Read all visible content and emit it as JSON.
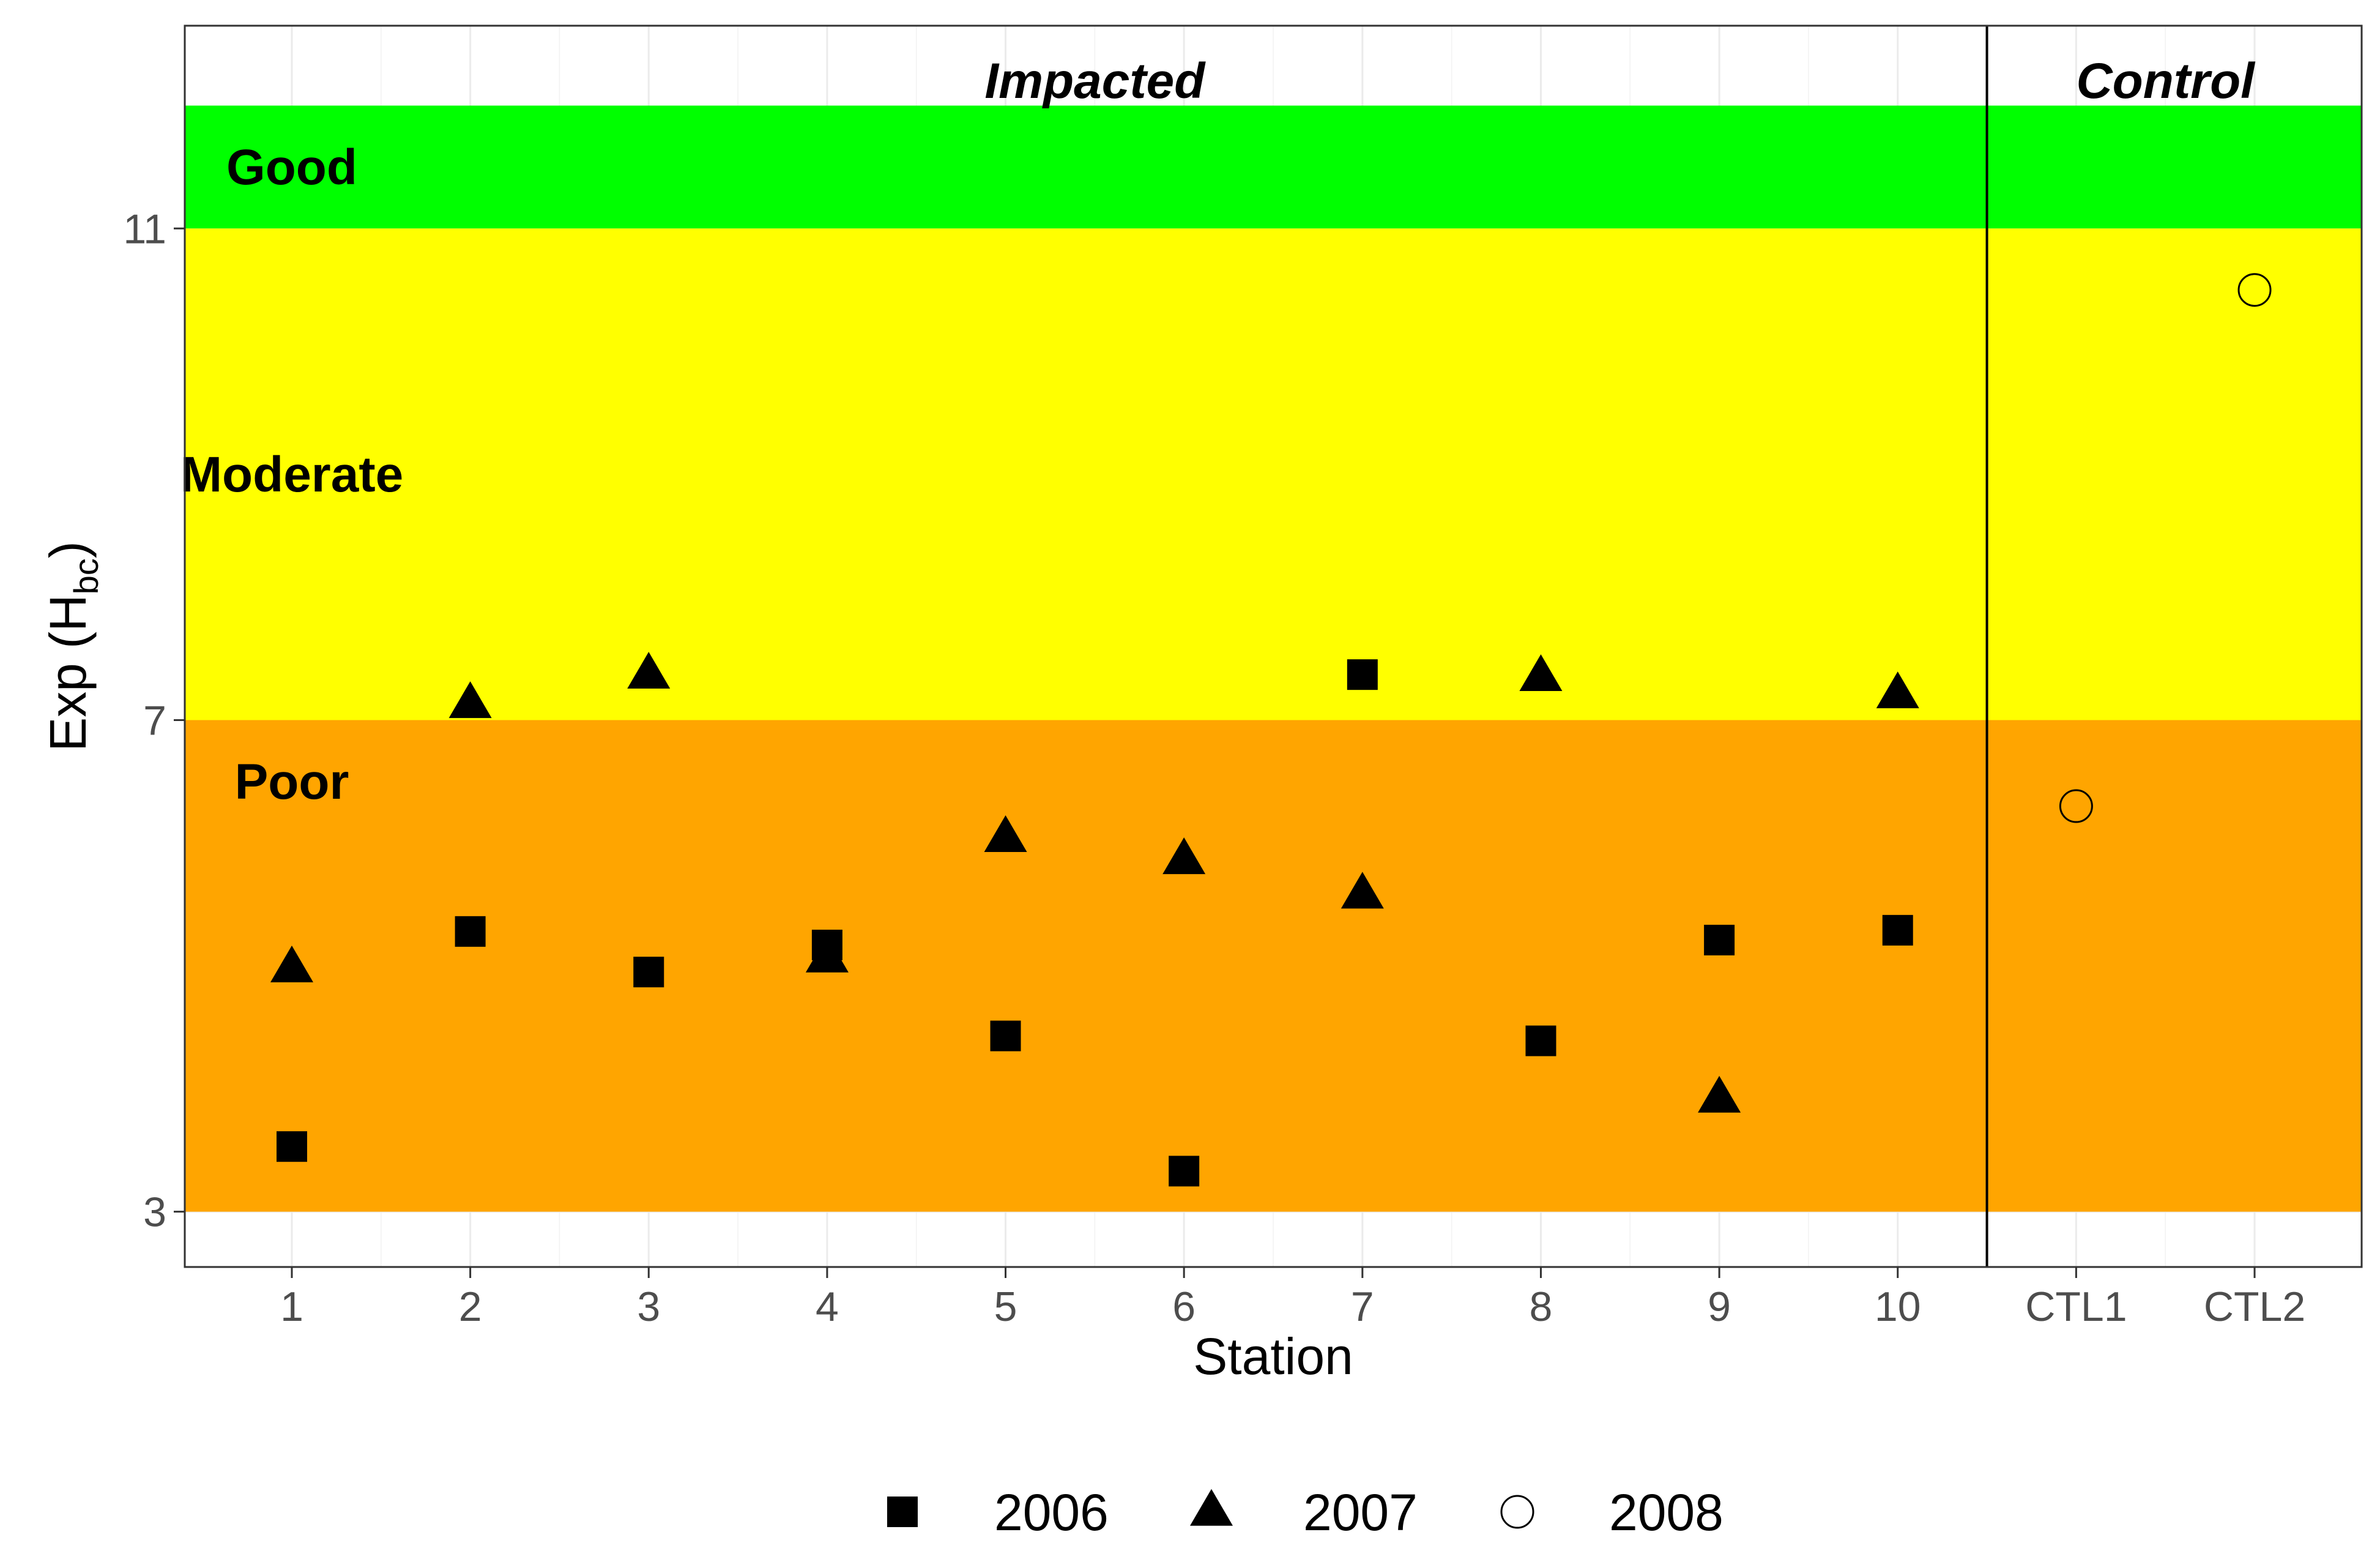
{
  "chart_data": {
    "type": "scatter",
    "title": "",
    "xlabel": "Station",
    "ylabel": "Exp (H",
    "ylabel_subscript": "bc",
    "ylabel_close": ")",
    "categories": [
      "1",
      "2",
      "3",
      "4",
      "5",
      "6",
      "7",
      "8",
      "9",
      "10",
      "CTL1",
      "CTL2"
    ],
    "ylim": [
      2.55,
      12.65
    ],
    "yticks": [
      "3",
      "7",
      "11"
    ],
    "grid": true,
    "legend_position": "bottom",
    "bands": [
      {
        "label": "Good",
        "ymin": 11,
        "ymax": 12,
        "color": "#00ff00"
      },
      {
        "label": "Moderate",
        "ymin": 7,
        "ymax": 11,
        "color": "#ffff00"
      },
      {
        "label": "Poor",
        "ymin": 3,
        "ymax": 7,
        "color": "#ffa500"
      }
    ],
    "band_label_y": {
      "Good": 11.5,
      "Moderate": 9.0,
      "Poor": 6.5
    },
    "groups": [
      {
        "label": "Impacted",
        "categories": [
          "1",
          "2",
          "3",
          "4",
          "5",
          "6",
          "7",
          "8",
          "9",
          "10"
        ]
      },
      {
        "label": "Control",
        "categories": [
          "CTL1",
          "CTL2"
        ]
      }
    ],
    "group_divider_after": "10",
    "series": [
      {
        "name": "2006",
        "marker": "square",
        "points": [
          {
            "x": "1",
            "y": 3.53
          },
          {
            "x": "2",
            "y": 5.28
          },
          {
            "x": "3",
            "y": 4.95
          },
          {
            "x": "4",
            "y": 5.17
          },
          {
            "x": "5",
            "y": 4.43
          },
          {
            "x": "6",
            "y": 3.33
          },
          {
            "x": "7",
            "y": 7.37
          },
          {
            "x": "8",
            "y": 4.39
          },
          {
            "x": "9",
            "y": 5.21
          },
          {
            "x": "10",
            "y": 5.29
          }
        ]
      },
      {
        "name": "2007",
        "marker": "triangle",
        "points": [
          {
            "x": "1",
            "y": 4.98
          },
          {
            "x": "2",
            "y": 7.13
          },
          {
            "x": "3",
            "y": 7.37
          },
          {
            "x": "4",
            "y": 5.06
          },
          {
            "x": "5",
            "y": 6.04
          },
          {
            "x": "6",
            "y": 5.86
          },
          {
            "x": "7",
            "y": 5.58
          },
          {
            "x": "8",
            "y": 7.35
          },
          {
            "x": "9",
            "y": 3.92
          },
          {
            "x": "10",
            "y": 7.21
          }
        ]
      },
      {
        "name": "2008",
        "marker": "circle-open",
        "points": [
          {
            "x": "CTL1",
            "y": 6.3
          },
          {
            "x": "CTL2",
            "y": 10.5
          }
        ]
      }
    ]
  },
  "colors": {
    "good": "#00ff00",
    "moderate": "#ffff00",
    "poor": "#ffa500",
    "grid": "#ebebeb",
    "panel_border": "#333333",
    "marker": "#000000"
  }
}
